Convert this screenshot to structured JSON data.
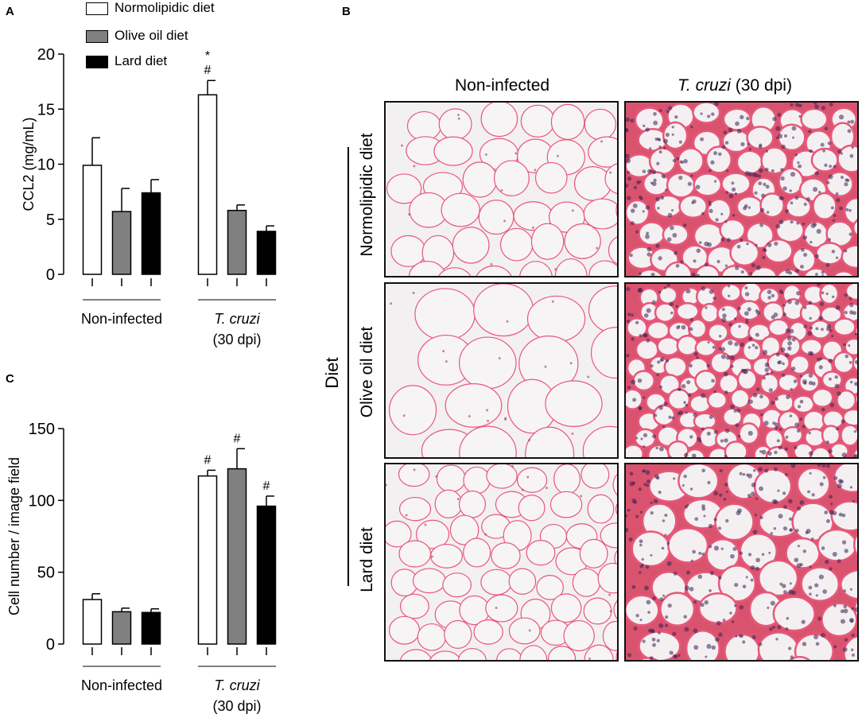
{
  "panels": {
    "a_letter": "A",
    "b_letter": "B",
    "c_letter": "C"
  },
  "legend": [
    {
      "label": "Normolipidic diet",
      "color": "#ffffff"
    },
    {
      "label": "Olive oil diet",
      "color": "#808080"
    },
    {
      "label": "Lard diet",
      "color": "#000000"
    }
  ],
  "panel_b": {
    "col_headers": {
      "non_infected": "Non-infected",
      "tcruzi_italic": "T. cruzi",
      "tcruzi_rest": " (30 dpi)"
    },
    "row_labels": [
      "Normolipidic diet",
      "Olive oil diet",
      "Lard diet"
    ],
    "group_label": "Diet",
    "image_grid": [
      {
        "row": "Normolipidic diet",
        "col": "Non-infected",
        "image": "adipose-tissue-he-stain"
      },
      {
        "row": "Normolipidic diet",
        "col": "T. cruzi (30 dpi)",
        "image": "adipose-tissue-he-stain-inflamed"
      },
      {
        "row": "Olive oil diet",
        "col": "Non-infected",
        "image": "adipose-tissue-he-stain"
      },
      {
        "row": "Olive oil diet",
        "col": "T. cruzi (30 dpi)",
        "image": "adipose-tissue-he-stain-inflamed"
      },
      {
        "row": "Lard diet",
        "col": "Non-infected",
        "image": "adipose-tissue-he-stain"
      },
      {
        "row": "Lard diet",
        "col": "T. cruzi (30 dpi)",
        "image": "adipose-tissue-he-stain-inflamed"
      }
    ],
    "colors": {
      "stain_pink": "#e8587a",
      "stain_purple": "#3a2050",
      "background": "#f3f0f1"
    }
  },
  "chart_data": [
    {
      "id": "A",
      "type": "bar",
      "ylabel": "CCL2 (mg/mL)",
      "ylim": [
        0,
        20
      ],
      "yticks": [
        0,
        5,
        10,
        15,
        20
      ],
      "groups": [
        {
          "label": "Non-infected",
          "label_italic": "",
          "label_line2": ""
        },
        {
          "label": "",
          "label_italic": "T. cruzi",
          "label_line2": "(30 dpi)"
        }
      ],
      "series": [
        {
          "name": "Normolipidic diet",
          "values": [
            9.9,
            16.3
          ],
          "errors": [
            2.5,
            1.3
          ]
        },
        {
          "name": "Olive oil diet",
          "values": [
            5.7,
            5.8
          ],
          "errors": [
            2.1,
            0.5
          ]
        },
        {
          "name": "Lard diet",
          "values": [
            7.4,
            3.9
          ],
          "errors": [
            1.2,
            0.5
          ]
        }
      ],
      "annotations": [
        {
          "group": 1,
          "series": 0,
          "text": "*"
        },
        {
          "group": 1,
          "series": 0,
          "text": "#"
        }
      ]
    },
    {
      "id": "C",
      "type": "bar",
      "ylabel": "Cell number / image field",
      "ylim": [
        0,
        150
      ],
      "yticks": [
        0,
        50,
        100,
        150
      ],
      "groups": [
        {
          "label": "Non-infected",
          "label_italic": "",
          "label_line2": ""
        },
        {
          "label": "",
          "label_italic": "T. cruzi",
          "label_line2": "(30 dpi)"
        }
      ],
      "series": [
        {
          "name": "Normolipidic diet",
          "values": [
            31,
            117
          ],
          "errors": [
            4,
            4
          ]
        },
        {
          "name": "Olive oil diet",
          "values": [
            22.5,
            122
          ],
          "errors": [
            2.5,
            14
          ]
        },
        {
          "name": "Lard diet",
          "values": [
            22,
            96
          ],
          "errors": [
            2.5,
            7
          ]
        }
      ],
      "annotations": [
        {
          "group": 1,
          "series": 0,
          "text": "#"
        },
        {
          "group": 1,
          "series": 1,
          "text": "#"
        },
        {
          "group": 1,
          "series": 2,
          "text": "#"
        }
      ]
    }
  ]
}
